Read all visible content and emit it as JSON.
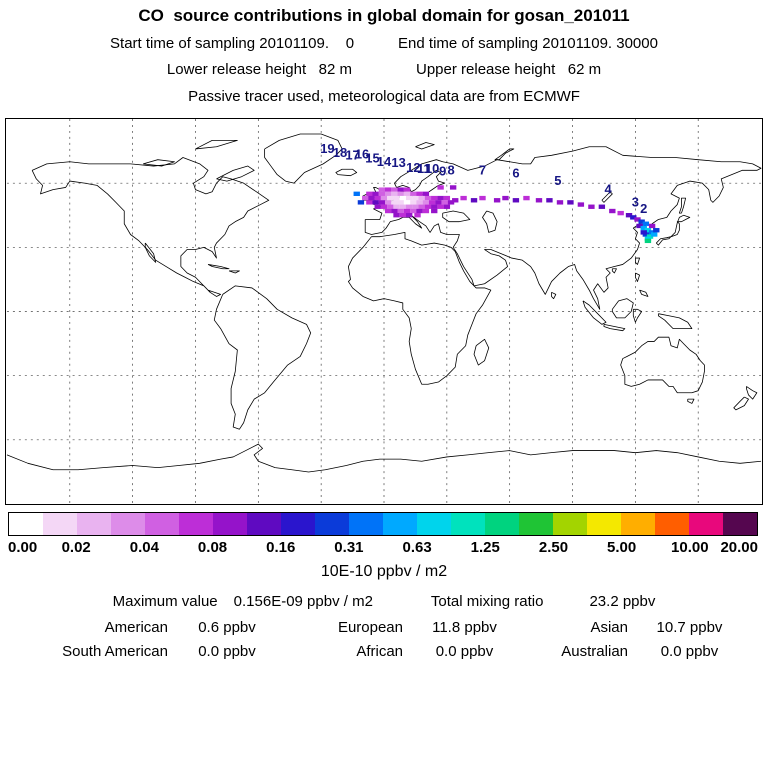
{
  "header": {
    "title": "CO  source contributions in global domain for gosan_201011",
    "line2_left": "Start time of sampling 20101109.    0",
    "line2_right": "End time of sampling 20101109. 30000",
    "line3_left": "Lower release height   82 m",
    "line3_right": "Upper release height   62 m",
    "line4": "Passive tracer used, meteorological data are from ECMWF"
  },
  "colorbar": {
    "colors": [
      "#ffffff",
      "#f4d7f6",
      "#e9b3f0",
      "#dd8ce9",
      "#d060e2",
      "#bd2ed7",
      "#9513ca",
      "#5f0ac1",
      "#2a15cd",
      "#0b3bd9",
      "#0073f8",
      "#00a9ff",
      "#00d4ec",
      "#00e2bd",
      "#00d37f",
      "#1fc435",
      "#a3d400",
      "#f4e800",
      "#ffae00",
      "#ff5e00",
      "#e8087c",
      "#55064f"
    ],
    "ticks": [
      "0.00",
      "0.02",
      "0.04",
      "0.08",
      "0.16",
      "0.31",
      "0.63",
      "1.25",
      "2.50",
      "5.00",
      "10.00",
      "20.00"
    ],
    "unit_label": "10E-10 ppbv / m2"
  },
  "stats": {
    "max_label": "Maximum value",
    "max_value": "0.156E-09 ppbv / m2",
    "total_label": "Total mixing ratio",
    "total_value": "23.2 ppbv",
    "regions": [
      {
        "label": "American",
        "value": "0.6 ppbv"
      },
      {
        "label": "European",
        "value": "11.8 ppbv"
      },
      {
        "label": "Asian",
        "value": "10.7 ppbv"
      },
      {
        "label": "South American",
        "value": "0.0 ppbv"
      },
      {
        "label": "African",
        "value": "0.0 ppbv"
      },
      {
        "label": "Australian",
        "value": "0.0 ppbv"
      }
    ]
  },
  "chart_data": {
    "type": "heatmap",
    "title": "CO source contributions in global domain for gosan_201011",
    "projection": "equirectangular",
    "lon_range": [
      -180,
      180
    ],
    "lat_range": [
      -90,
      90
    ],
    "graticule_spacing_deg": 30,
    "scale_boundaries": [
      0.0,
      0.02,
      0.04,
      0.08,
      0.16,
      0.31,
      0.63,
      1.25,
      2.5,
      5.0,
      10.0,
      20.0
    ],
    "scale_unit": "10E-10 ppbv / m2",
    "maximum_value": "0.156E-09 ppbv / m2",
    "total_mixing_ratio_ppbv": 23.2,
    "contributions_ppbv": {
      "American": 0.6,
      "European": 11.8,
      "Asian": 10.7,
      "South American": 0.0,
      "African": 0.0,
      "Australian": 0.0
    },
    "trajectory_labels": [
      {
        "t": "19",
        "lon": -27,
        "lat": 76
      },
      {
        "t": "18",
        "lon": -21,
        "lat": 74
      },
      {
        "t": "17",
        "lon": -15,
        "lat": 73
      },
      {
        "t": "16",
        "lon": -10.5,
        "lat": 73.5
      },
      {
        "t": "15",
        "lon": -5.5,
        "lat": 71.5
      },
      {
        "t": "14",
        "lon": 0,
        "lat": 70
      },
      {
        "t": "13",
        "lon": 7,
        "lat": 69.5
      },
      {
        "t": "12",
        "lon": 14,
        "lat": 67
      },
      {
        "t": "11",
        "lon": 19,
        "lat": 66.5
      },
      {
        "t": "10",
        "lon": 23,
        "lat": 66.5
      },
      {
        "t": "9",
        "lon": 28,
        "lat": 65.5
      },
      {
        "t": "8",
        "lon": 32,
        "lat": 66
      },
      {
        "t": "7",
        "lon": 47,
        "lat": 66
      },
      {
        "t": "6",
        "lon": 63,
        "lat": 64.5
      },
      {
        "t": "5",
        "lon": 83,
        "lat": 61
      },
      {
        "t": "4",
        "lon": 107,
        "lat": 57
      },
      {
        "t": "3",
        "lon": 120,
        "lat": 51
      },
      {
        "t": "2",
        "lon": 124,
        "lat": 48
      }
    ],
    "plume_cells": [
      [
        -1,
        57,
        4
      ],
      [
        2,
        57,
        5
      ],
      [
        5,
        57,
        4
      ],
      [
        8,
        57,
        6
      ],
      [
        11,
        57,
        5
      ],
      [
        27,
        58,
        5
      ],
      [
        33,
        58,
        6
      ],
      [
        -13,
        55,
        10
      ],
      [
        -7,
        55,
        5
      ],
      [
        -4,
        55,
        6
      ],
      [
        -1,
        55,
        4
      ],
      [
        2,
        55,
        3
      ],
      [
        5,
        55,
        2
      ],
      [
        8,
        55,
        3
      ],
      [
        11,
        55,
        2
      ],
      [
        14,
        55,
        4
      ],
      [
        17,
        55,
        5
      ],
      [
        20,
        55,
        6
      ],
      [
        -9,
        53,
        4
      ],
      [
        -6,
        53,
        6
      ],
      [
        -3,
        53,
        5
      ],
      [
        0,
        53,
        3
      ],
      [
        3,
        53,
        1
      ],
      [
        6,
        53,
        1
      ],
      [
        9,
        53,
        0
      ],
      [
        12,
        53,
        1
      ],
      [
        15,
        53,
        1
      ],
      [
        18,
        53,
        2
      ],
      [
        21,
        53,
        4
      ],
      [
        24,
        53,
        5
      ],
      [
        27,
        53,
        6
      ],
      [
        30,
        53,
        5
      ],
      [
        -11,
        51,
        9
      ],
      [
        -7,
        51,
        5
      ],
      [
        -4,
        51,
        7
      ],
      [
        -1,
        51,
        6
      ],
      [
        2,
        51,
        3
      ],
      [
        5,
        51,
        1
      ],
      [
        8,
        51,
        1
      ],
      [
        11,
        51,
        0
      ],
      [
        14,
        51,
        1
      ],
      [
        17,
        51,
        2
      ],
      [
        20,
        51,
        3
      ],
      [
        23,
        51,
        5
      ],
      [
        26,
        51,
        6
      ],
      [
        29,
        51,
        4
      ],
      [
        32,
        51,
        6
      ],
      [
        -3,
        49,
        6
      ],
      [
        0,
        49,
        5
      ],
      [
        3,
        49,
        4
      ],
      [
        6,
        49,
        2
      ],
      [
        9,
        49,
        2
      ],
      [
        12,
        49,
        3
      ],
      [
        15,
        49,
        3
      ],
      [
        18,
        49,
        4
      ],
      [
        21,
        49,
        5
      ],
      [
        24,
        49,
        6
      ],
      [
        27,
        49,
        5
      ],
      [
        30,
        49,
        6
      ],
      [
        2,
        47,
        5
      ],
      [
        5,
        47,
        6
      ],
      [
        8,
        47,
        4
      ],
      [
        11,
        47,
        5
      ],
      [
        14,
        47,
        4
      ],
      [
        17,
        47,
        6
      ],
      [
        20,
        47,
        5
      ],
      [
        24,
        47,
        6
      ],
      [
        6,
        45,
        6
      ],
      [
        9,
        45,
        5
      ],
      [
        12,
        45,
        6
      ],
      [
        16,
        45,
        5
      ],
      [
        34,
        52,
        6
      ],
      [
        38,
        53,
        5
      ],
      [
        43,
        52,
        7
      ],
      [
        47,
        53,
        5
      ],
      [
        54,
        52,
        6
      ],
      [
        58,
        53,
        6
      ],
      [
        63,
        52,
        7
      ],
      [
        68,
        53,
        5
      ],
      [
        74,
        52,
        6
      ],
      [
        79,
        52,
        7
      ],
      [
        84,
        51,
        6
      ],
      [
        89,
        51,
        7
      ],
      [
        94,
        50,
        6
      ],
      [
        99,
        49,
        6
      ],
      [
        104,
        49,
        7
      ],
      [
        109,
        47,
        6
      ],
      [
        113,
        46,
        5
      ],
      [
        117,
        45,
        7
      ],
      [
        119,
        44,
        8
      ],
      [
        121,
        43,
        6
      ],
      [
        123,
        42,
        9
      ],
      [
        125,
        41,
        10
      ],
      [
        122,
        40,
        7
      ],
      [
        124,
        39,
        11
      ],
      [
        126,
        38,
        12
      ],
      [
        128,
        37,
        10
      ],
      [
        125,
        36,
        9
      ],
      [
        127,
        35,
        13
      ],
      [
        129,
        36,
        11
      ],
      [
        126,
        34,
        12
      ],
      [
        124,
        37,
        8
      ],
      [
        128,
        40,
        6
      ],
      [
        130,
        38,
        9
      ],
      [
        126,
        33,
        14
      ]
    ]
  }
}
